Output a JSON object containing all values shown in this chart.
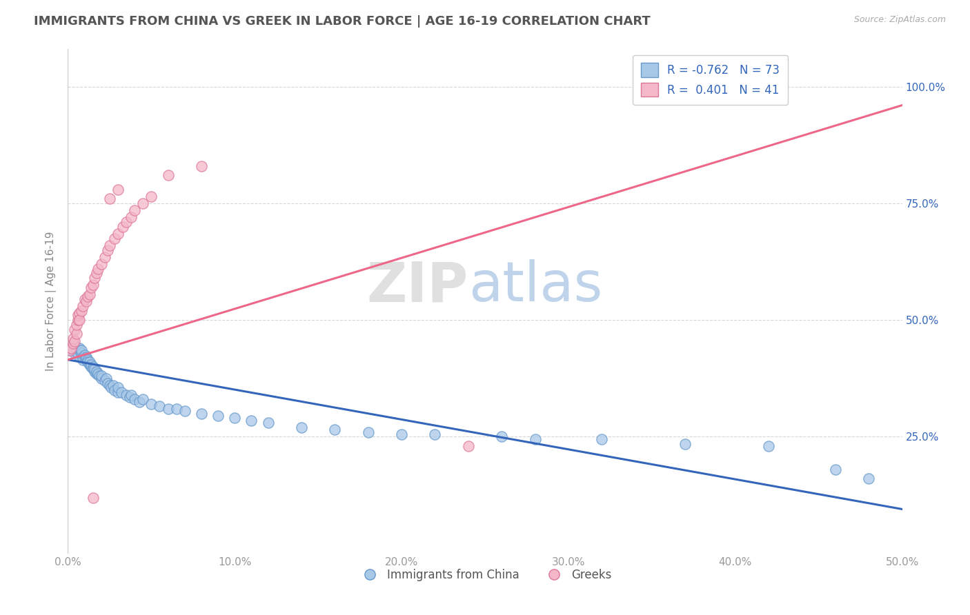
{
  "title": "IMMIGRANTS FROM CHINA VS GREEK IN LABOR FORCE | AGE 16-19 CORRELATION CHART",
  "source_text": "Source: ZipAtlas.com",
  "ylabel": "In Labor Force | Age 16-19",
  "xlim": [
    0.0,
    0.5
  ],
  "ylim": [
    0.0,
    1.08
  ],
  "xtick_labels": [
    "0.0%",
    "10.0%",
    "20.0%",
    "30.0%",
    "40.0%",
    "50.0%"
  ],
  "xtick_vals": [
    0.0,
    0.1,
    0.2,
    0.3,
    0.4,
    0.5
  ],
  "ytick_vals": [
    0.25,
    0.5,
    0.75,
    1.0
  ],
  "right_ytick_labels": [
    "25.0%",
    "50.0%",
    "75.0%",
    "100.0%"
  ],
  "china_color": "#A8C8E8",
  "china_color_edge": "#6699CC",
  "china_color_line": "#3366BB",
  "greek_color": "#F4B8C8",
  "greek_color_edge": "#DD7799",
  "greek_color_line": "#EE6688",
  "china_r": -0.762,
  "china_n": 73,
  "greek_r": 0.401,
  "greek_n": 41,
  "legend_label_china": "Immigrants from China",
  "legend_label_greek": "Greeks",
  "background_color": "#ffffff",
  "grid_color": "#cccccc",
  "title_color": "#555555",
  "china_line_x": [
    0.0,
    0.5
  ],
  "china_line_y": [
    0.415,
    0.095
  ],
  "greek_line_x": [
    0.0,
    0.5
  ],
  "greek_line_y": [
    0.415,
    0.96
  ],
  "china_scatter": [
    [
      0.001,
      0.435
    ],
    [
      0.002,
      0.44
    ],
    [
      0.003,
      0.435
    ],
    [
      0.004,
      0.43
    ],
    [
      0.004,
      0.445
    ],
    [
      0.005,
      0.44
    ],
    [
      0.005,
      0.435
    ],
    [
      0.006,
      0.43
    ],
    [
      0.006,
      0.425
    ],
    [
      0.007,
      0.435
    ],
    [
      0.007,
      0.44
    ],
    [
      0.008,
      0.43
    ],
    [
      0.008,
      0.435
    ],
    [
      0.009,
      0.42
    ],
    [
      0.009,
      0.415
    ],
    [
      0.01,
      0.42
    ],
    [
      0.01,
      0.425
    ],
    [
      0.011,
      0.415
    ],
    [
      0.011,
      0.42
    ],
    [
      0.012,
      0.415
    ],
    [
      0.012,
      0.41
    ],
    [
      0.013,
      0.405
    ],
    [
      0.013,
      0.41
    ],
    [
      0.014,
      0.4
    ],
    [
      0.014,
      0.405
    ],
    [
      0.015,
      0.4
    ],
    [
      0.015,
      0.395
    ],
    [
      0.016,
      0.39
    ],
    [
      0.016,
      0.395
    ],
    [
      0.017,
      0.385
    ],
    [
      0.017,
      0.39
    ],
    [
      0.018,
      0.385
    ],
    [
      0.019,
      0.38
    ],
    [
      0.02,
      0.375
    ],
    [
      0.02,
      0.38
    ],
    [
      0.022,
      0.37
    ],
    [
      0.023,
      0.375
    ],
    [
      0.024,
      0.365
    ],
    [
      0.025,
      0.36
    ],
    [
      0.026,
      0.355
    ],
    [
      0.027,
      0.36
    ],
    [
      0.028,
      0.35
    ],
    [
      0.03,
      0.345
    ],
    [
      0.03,
      0.355
    ],
    [
      0.032,
      0.345
    ],
    [
      0.035,
      0.34
    ],
    [
      0.037,
      0.335
    ],
    [
      0.038,
      0.34
    ],
    [
      0.04,
      0.33
    ],
    [
      0.043,
      0.325
    ],
    [
      0.045,
      0.33
    ],
    [
      0.05,
      0.32
    ],
    [
      0.055,
      0.315
    ],
    [
      0.06,
      0.31
    ],
    [
      0.065,
      0.31
    ],
    [
      0.07,
      0.305
    ],
    [
      0.08,
      0.3
    ],
    [
      0.09,
      0.295
    ],
    [
      0.1,
      0.29
    ],
    [
      0.11,
      0.285
    ],
    [
      0.12,
      0.28
    ],
    [
      0.14,
      0.27
    ],
    [
      0.16,
      0.265
    ],
    [
      0.18,
      0.26
    ],
    [
      0.2,
      0.255
    ],
    [
      0.22,
      0.255
    ],
    [
      0.26,
      0.25
    ],
    [
      0.28,
      0.245
    ],
    [
      0.32,
      0.245
    ],
    [
      0.37,
      0.235
    ],
    [
      0.42,
      0.23
    ],
    [
      0.46,
      0.18
    ],
    [
      0.48,
      0.16
    ]
  ],
  "greek_scatter": [
    [
      0.001,
      0.435
    ],
    [
      0.002,
      0.44
    ],
    [
      0.003,
      0.45
    ],
    [
      0.003,
      0.46
    ],
    [
      0.004,
      0.455
    ],
    [
      0.004,
      0.48
    ],
    [
      0.005,
      0.47
    ],
    [
      0.005,
      0.49
    ],
    [
      0.006,
      0.5
    ],
    [
      0.006,
      0.51
    ],
    [
      0.007,
      0.515
    ],
    [
      0.007,
      0.5
    ],
    [
      0.008,
      0.52
    ],
    [
      0.009,
      0.53
    ],
    [
      0.01,
      0.545
    ],
    [
      0.011,
      0.54
    ],
    [
      0.012,
      0.55
    ],
    [
      0.013,
      0.555
    ],
    [
      0.014,
      0.57
    ],
    [
      0.015,
      0.575
    ],
    [
      0.016,
      0.59
    ],
    [
      0.017,
      0.6
    ],
    [
      0.018,
      0.61
    ],
    [
      0.02,
      0.62
    ],
    [
      0.022,
      0.635
    ],
    [
      0.024,
      0.65
    ],
    [
      0.025,
      0.66
    ],
    [
      0.028,
      0.675
    ],
    [
      0.03,
      0.685
    ],
    [
      0.033,
      0.7
    ],
    [
      0.035,
      0.71
    ],
    [
      0.038,
      0.72
    ],
    [
      0.04,
      0.735
    ],
    [
      0.045,
      0.75
    ],
    [
      0.05,
      0.765
    ],
    [
      0.025,
      0.76
    ],
    [
      0.03,
      0.78
    ],
    [
      0.06,
      0.81
    ],
    [
      0.08,
      0.83
    ],
    [
      0.24,
      0.23
    ],
    [
      0.015,
      0.12
    ]
  ]
}
